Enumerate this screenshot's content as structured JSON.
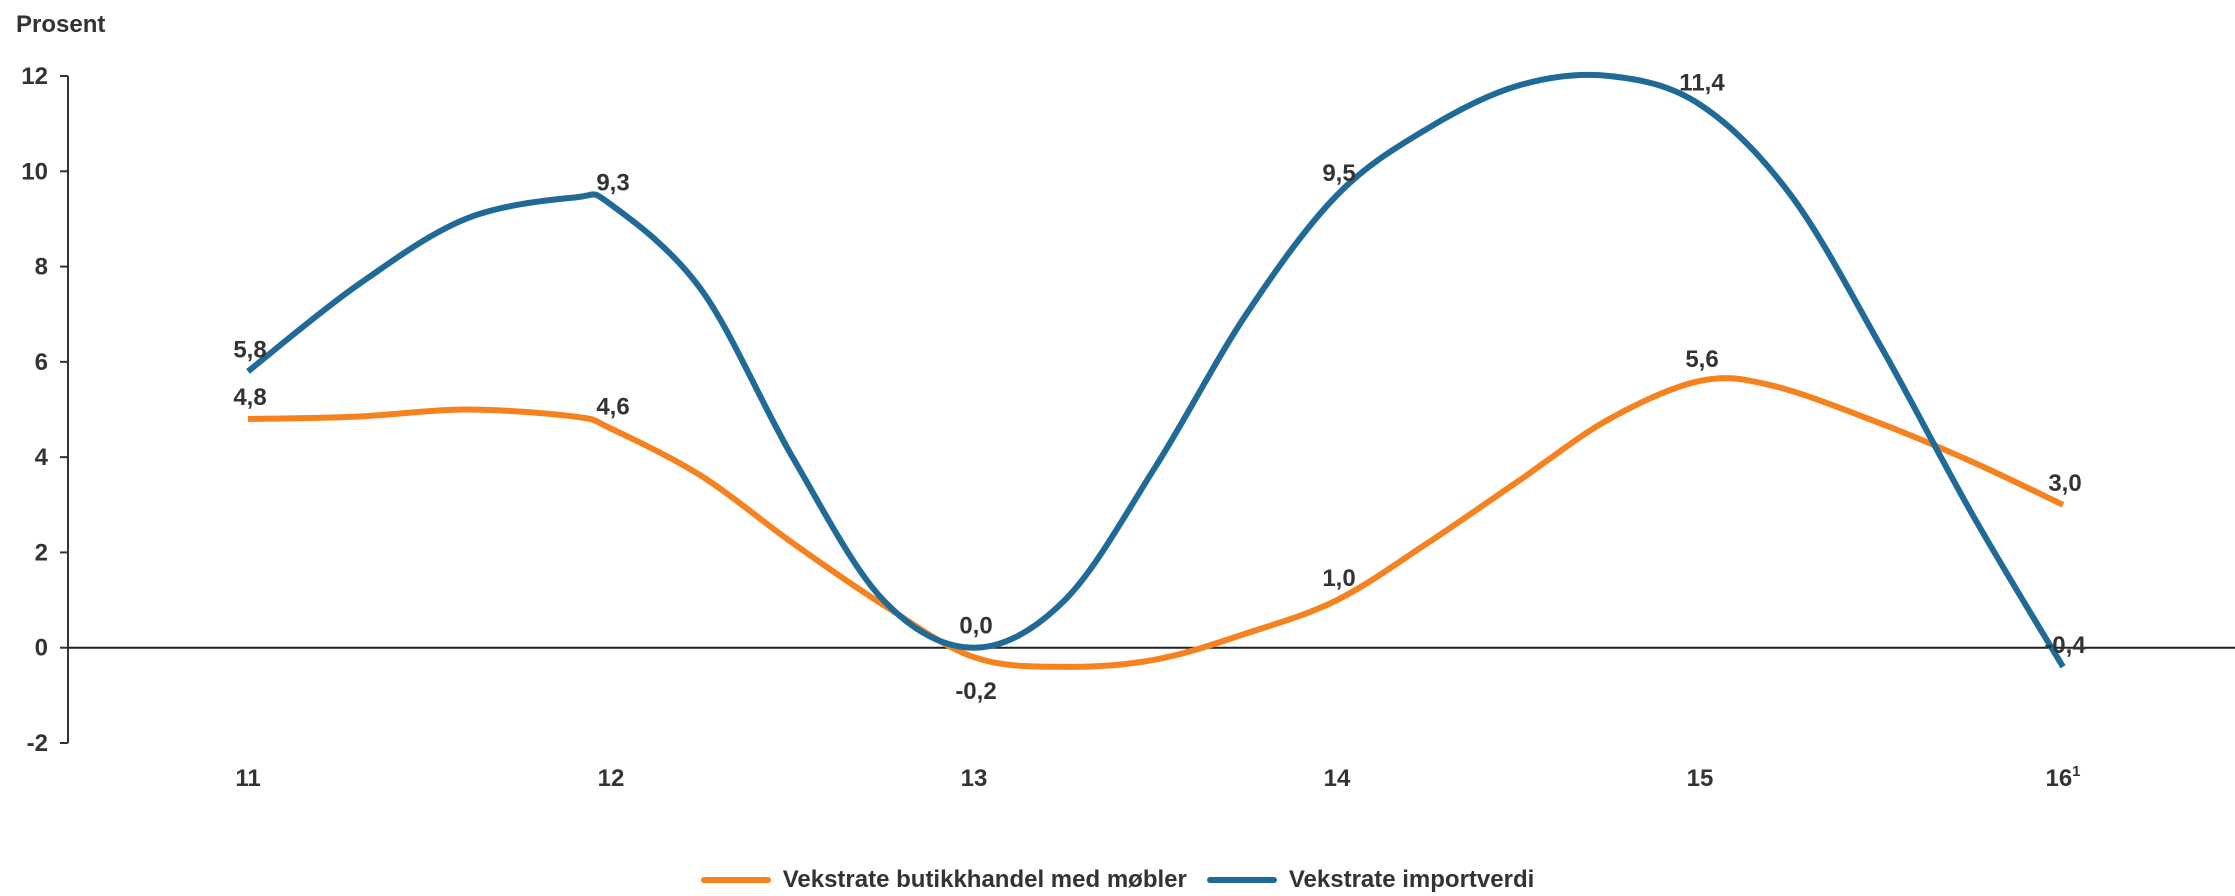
{
  "chart_data": {
    "type": "line",
    "ylabel": "Prosent",
    "ylim": [
      -2,
      12
    ],
    "yticks": [
      -2,
      0,
      2,
      4,
      6,
      8,
      10,
      12
    ],
    "x_tick_labels": [
      {
        "main": "11",
        "sup": ""
      },
      {
        "main": "12",
        "sup": ""
      },
      {
        "main": "13",
        "sup": ""
      },
      {
        "main": "14",
        "sup": ""
      },
      {
        "main": "15",
        "sup": ""
      },
      {
        "main": "16",
        "sup": "1"
      }
    ],
    "xlim": [
      10.5,
      16.5
    ],
    "series": [
      {
        "name": "Vekstrate butikkhandel med møbler",
        "color": "#F5821F",
        "points": [
          [
            11.0,
            4.8
          ],
          [
            11.3,
            4.85
          ],
          [
            11.6,
            5.0
          ],
          [
            11.9,
            4.85
          ],
          [
            12.0,
            4.6
          ],
          [
            12.25,
            3.6
          ],
          [
            12.5,
            2.2
          ],
          [
            12.75,
            0.9
          ],
          [
            13.0,
            -0.2
          ],
          [
            13.25,
            -0.4
          ],
          [
            13.5,
            -0.25
          ],
          [
            13.75,
            0.3
          ],
          [
            14.0,
            1.0
          ],
          [
            14.25,
            2.2
          ],
          [
            14.5,
            3.5
          ],
          [
            14.75,
            4.8
          ],
          [
            15.0,
            5.6
          ],
          [
            15.2,
            5.5
          ],
          [
            15.5,
            4.7
          ],
          [
            15.75,
            3.9
          ],
          [
            16.0,
            3.0
          ]
        ],
        "labels": [
          {
            "x": 11,
            "y": 4.8,
            "text": "4,8",
            "pos": "above"
          },
          {
            "x": 12,
            "y": 4.6,
            "text": "4,6",
            "pos": "above"
          },
          {
            "x": 13,
            "y": -0.2,
            "text": "-0,2",
            "pos": "below"
          },
          {
            "x": 14,
            "y": 1.0,
            "text": "1,0",
            "pos": "above"
          },
          {
            "x": 15,
            "y": 5.6,
            "text": "5,6",
            "pos": "above"
          },
          {
            "x": 16,
            "y": 3.0,
            "text": "3,0",
            "pos": "above"
          }
        ]
      },
      {
        "name": "Vekstrate importverdi",
        "color": "#1F6A96",
        "points": [
          [
            11.0,
            5.8
          ],
          [
            11.3,
            7.6
          ],
          [
            11.6,
            9.0
          ],
          [
            11.9,
            9.45
          ],
          [
            12.0,
            9.3
          ],
          [
            12.25,
            7.5
          ],
          [
            12.5,
            4.0
          ],
          [
            12.75,
            1.0
          ],
          [
            13.0,
            0.0
          ],
          [
            13.25,
            1.0
          ],
          [
            13.5,
            3.8
          ],
          [
            13.75,
            7.0
          ],
          [
            14.0,
            9.5
          ],
          [
            14.25,
            10.9
          ],
          [
            14.5,
            11.8
          ],
          [
            14.75,
            12.0
          ],
          [
            15.0,
            11.4
          ],
          [
            15.25,
            9.5
          ],
          [
            15.5,
            6.3
          ],
          [
            15.75,
            2.8
          ],
          [
            16.0,
            -0.4
          ]
        ],
        "labels": [
          {
            "x": 11,
            "y": 5.8,
            "text": "5,8",
            "pos": "above"
          },
          {
            "x": 12,
            "y": 9.3,
            "text": "9,3",
            "pos": "above"
          },
          {
            "x": 13,
            "y": 0.0,
            "text": "0,0",
            "pos": "above"
          },
          {
            "x": 14,
            "y": 9.5,
            "text": "9,5",
            "pos": "above"
          },
          {
            "x": 15,
            "y": 11.4,
            "text": "11,4",
            "pos": "above"
          },
          {
            "x": 16,
            "y": -0.4,
            "text": "-0,4",
            "pos": "above"
          }
        ]
      }
    ],
    "grid": false,
    "legend": "bottom-center"
  }
}
